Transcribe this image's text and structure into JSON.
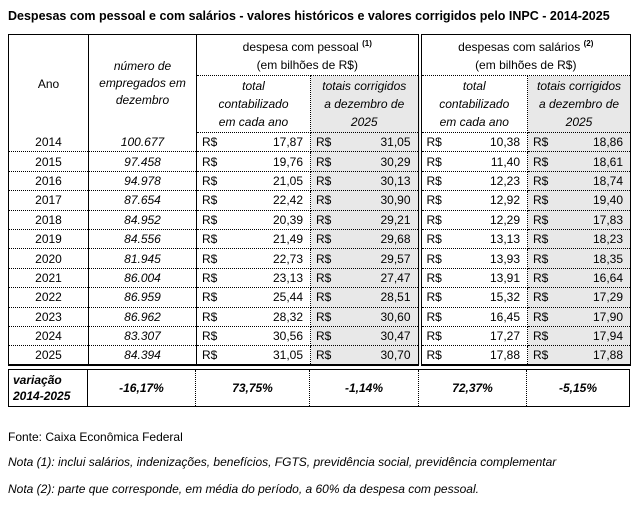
{
  "title": "Despesas com pessoal e com salários - valores históricos e valores corrigidos pelo INPC - 2014-2025",
  "colors": {
    "shaded_column": "#e8e8e8",
    "border": "#000000",
    "text": "#000000"
  },
  "table": {
    "headers": {
      "ano": "Ano",
      "empregados_lines": [
        "número de",
        "empregados em",
        "dezembro"
      ],
      "currency": "R$",
      "groups": [
        {
          "title": "despesa com pessoal",
          "sup": "(1)",
          "unit": "(em bilhões de R$)"
        },
        {
          "title": "despesas com salários",
          "sup": "(2)",
          "unit": "(em bilhões de R$)"
        }
      ],
      "sub_total_lines": [
        "total",
        "contabilizado",
        "em cada ano"
      ],
      "sub_corrigido_lines": [
        "totais corrigidos",
        "a dezembro de",
        "2025"
      ]
    },
    "rows": [
      {
        "ano": "2014",
        "empregados": "100.677",
        "pessoal_total": "17,87",
        "pessoal_corrigido": "31,05",
        "salarios_total": "10,38",
        "salarios_corrigido": "18,86"
      },
      {
        "ano": "2015",
        "empregados": "97.458",
        "pessoal_total": "19,76",
        "pessoal_corrigido": "30,29",
        "salarios_total": "11,40",
        "salarios_corrigido": "18,61"
      },
      {
        "ano": "2016",
        "empregados": "94.978",
        "pessoal_total": "21,05",
        "pessoal_corrigido": "30,13",
        "salarios_total": "12,23",
        "salarios_corrigido": "18,74"
      },
      {
        "ano": "2017",
        "empregados": "87.654",
        "pessoal_total": "22,42",
        "pessoal_corrigido": "30,90",
        "salarios_total": "12,92",
        "salarios_corrigido": "19,40"
      },
      {
        "ano": "2018",
        "empregados": "84.952",
        "pessoal_total": "20,39",
        "pessoal_corrigido": "29,21",
        "salarios_total": "12,29",
        "salarios_corrigido": "17,83"
      },
      {
        "ano": "2019",
        "empregados": "84.556",
        "pessoal_total": "21,49",
        "pessoal_corrigido": "29,68",
        "salarios_total": "13,13",
        "salarios_corrigido": "18,23"
      },
      {
        "ano": "2020",
        "empregados": "81.945",
        "pessoal_total": "22,73",
        "pessoal_corrigido": "29,57",
        "salarios_total": "13,93",
        "salarios_corrigido": "18,35"
      },
      {
        "ano": "2021",
        "empregados": "86.004",
        "pessoal_total": "23,13",
        "pessoal_corrigido": "27,47",
        "salarios_total": "13,91",
        "salarios_corrigido": "16,64"
      },
      {
        "ano": "2022",
        "empregados": "86.959",
        "pessoal_total": "25,44",
        "pessoal_corrigido": "28,51",
        "salarios_total": "15,32",
        "salarios_corrigido": "17,29"
      },
      {
        "ano": "2023",
        "empregados": "86.962",
        "pessoal_total": "28,32",
        "pessoal_corrigido": "30,60",
        "salarios_total": "16,45",
        "salarios_corrigido": "17,90"
      },
      {
        "ano": "2024",
        "empregados": "83.307",
        "pessoal_total": "30,56",
        "pessoal_corrigido": "30,47",
        "salarios_total": "17,27",
        "salarios_corrigido": "17,94"
      },
      {
        "ano": "2025",
        "empregados": "84.394",
        "pessoal_total": "31,05",
        "pessoal_corrigido": "30,70",
        "salarios_total": "17,88",
        "salarios_corrigido": "17,88"
      }
    ],
    "variacao": {
      "label_lines": [
        "variação",
        "2014-2025"
      ],
      "values": [
        "-16,17%",
        "73,75%",
        "-1,14%",
        "72,37%",
        "-5,15%"
      ]
    }
  },
  "footer": {
    "fonte": "Fonte: Caixa Econômica Federal",
    "nota1": "Nota (1): inclui salários, indenizações, benefícios, FGTS, previdência social, previdência complementar",
    "nota2": "Nota (2): parte que corresponde, em média do período, a 60% da despesa com pessoal."
  }
}
